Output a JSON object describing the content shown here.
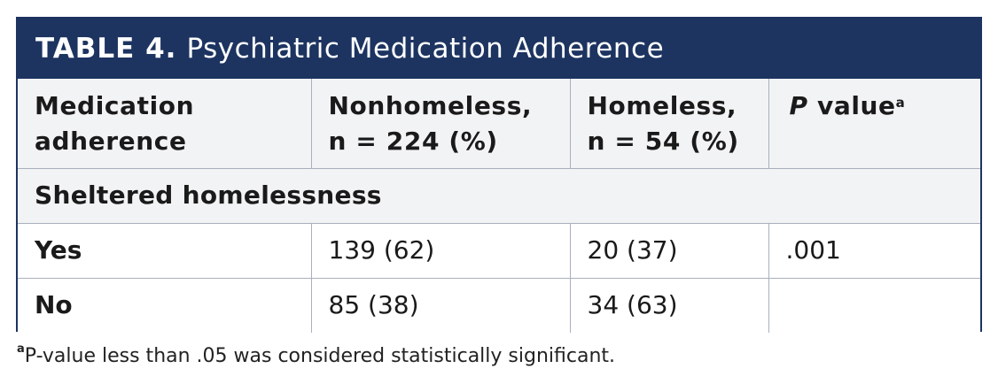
{
  "table": {
    "label": "TABLE 4.",
    "title": "Psychiatric Medication Adherence",
    "headers": {
      "col1_line1": "Medication",
      "col1_line2": "adherence",
      "col2_line1": "Nonhomeless,",
      "col2_line2": "n = 224 (%)",
      "col3_line1": "Homeless,",
      "col3_line2": "n = 54 (%)",
      "col4_p": "P",
      "col4_rest": "value",
      "col4_sup": "a"
    },
    "section": "Sheltered homelessness",
    "rows": [
      {
        "label": "Yes",
        "nonhomeless": "139 (62)",
        "homeless": "20 (37)",
        "p_value": ".001"
      },
      {
        "label": "No",
        "nonhomeless": "85 (38)",
        "homeless": "34 (63)",
        "p_value": ""
      }
    ]
  },
  "footnote": {
    "marker": "a",
    "text": "P-value less than .05 was considered statistically significant."
  }
}
